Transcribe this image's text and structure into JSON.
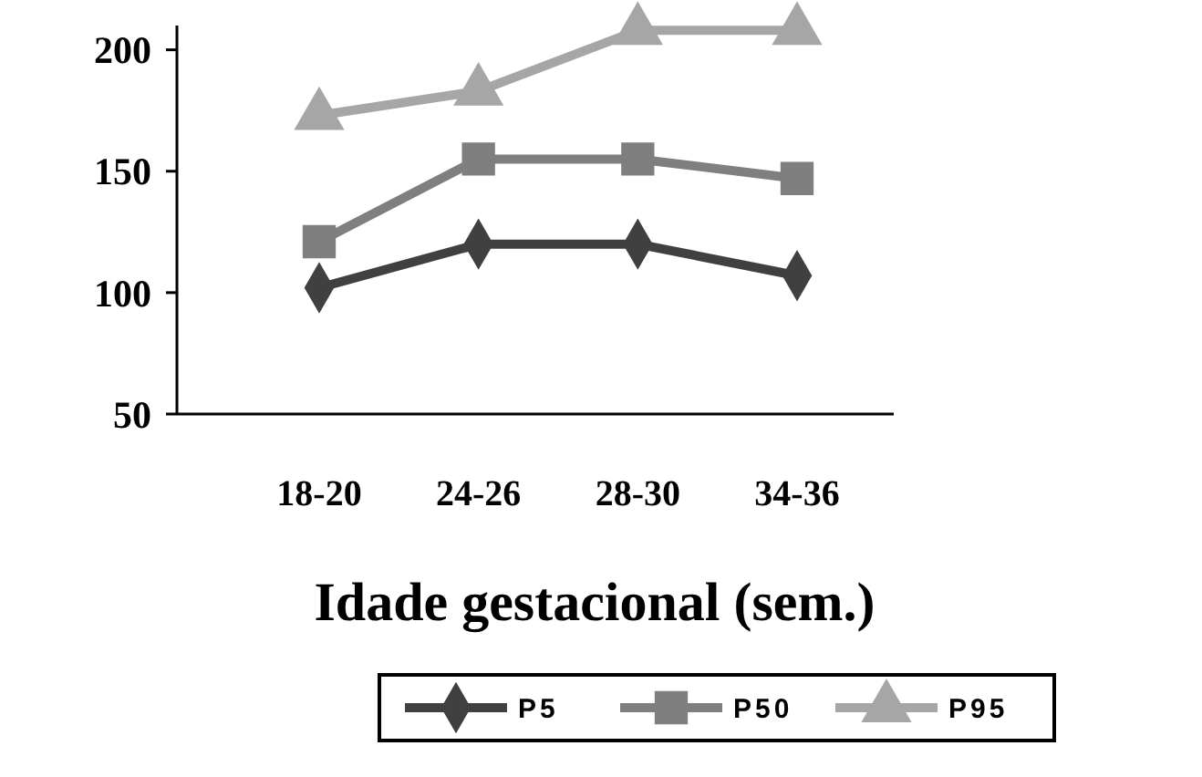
{
  "chart_data": {
    "type": "line",
    "xlabel": "Idade gestacional (sem.)",
    "categories": [
      "18-20",
      "24-26",
      "28-30",
      "34-36"
    ],
    "series": [
      {
        "name": "P5",
        "color": "#404040",
        "marker": "diamond",
        "values": [
          102,
          120,
          120,
          107
        ]
      },
      {
        "name": "P50",
        "color": "#7f7f7f",
        "marker": "square",
        "values": [
          121,
          155,
          155,
          147
        ]
      },
      {
        "name": "P95",
        "color": "#a6a6a6",
        "marker": "triangle",
        "values": [
          173,
          183,
          208,
          208
        ]
      }
    ],
    "ylim": [
      50,
      210
    ],
    "yticks": [
      50,
      100,
      150,
      200
    ],
    "grid": false,
    "legend": "bottom",
    "line_style": "solid"
  }
}
